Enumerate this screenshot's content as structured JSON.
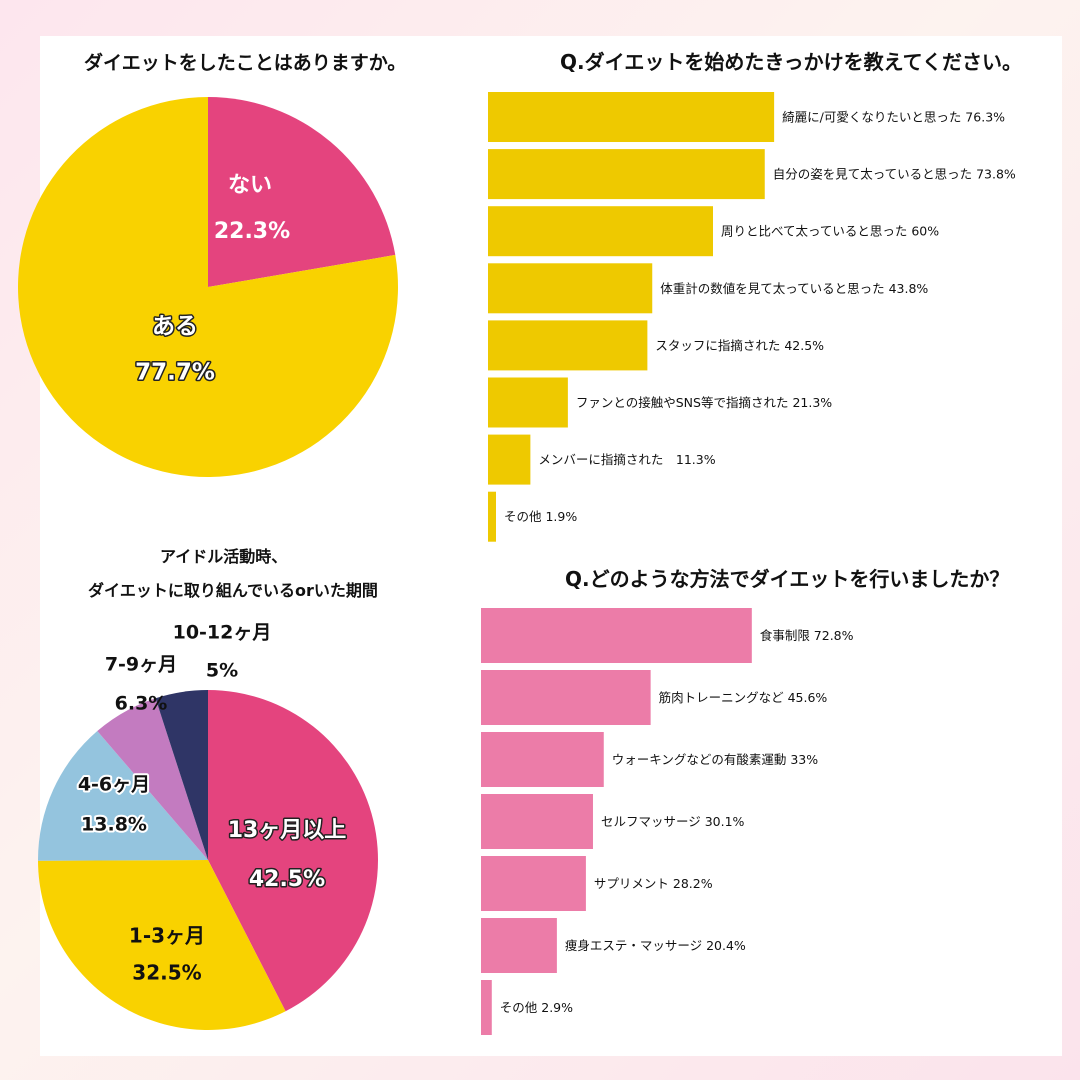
{
  "colors": {
    "yellow": "#f9d200",
    "bar_yellow": "#eec900",
    "pink_dark": "#e4447e",
    "pink_bar": "#ec7ca8",
    "light_blue": "#94c4de",
    "purple": "#c37bc0",
    "navy": "#2f3566"
  },
  "chart_data": [
    {
      "type": "pie",
      "title": "ダイエットをしたことはありますか。",
      "slices": [
        {
          "label": "ない",
          "value": 22.3,
          "value_label": "22.3%",
          "color": "#e4447e"
        },
        {
          "label": "ある",
          "value": 77.7,
          "value_label": "77.7%",
          "color": "#f9d200"
        }
      ]
    },
    {
      "type": "bar",
      "orientation": "horizontal",
      "title": "Q.ダイエットを始めたきっかけを教えてください。",
      "color": "#eec900",
      "categories": [
        "綺麗に/可愛くなりたいと思った 76.3%",
        "自分の姿を見て太っていると思った 73.8%",
        "周りと比べて太っていると思った 60%",
        "体重計の数値を見て太っていると思った 43.8%",
        "スタッフに指摘された 42.5%",
        "ファンとの接触やSNS等で指摘された 21.3%",
        "メンバーに指摘された　11.3%",
        "その他 1.9%"
      ],
      "values": [
        76.3,
        73.8,
        60,
        43.8,
        42.5,
        21.3,
        11.3,
        1.9
      ]
    },
    {
      "type": "pie",
      "title_lines": [
        "アイドル活動時、",
        "ダイエットに取り組んでいるorいた期間"
      ],
      "slices": [
        {
          "label": "13ヶ月以上",
          "value": 42.5,
          "value_label": "42.5%",
          "color": "#e4447e"
        },
        {
          "label": "1-3ヶ月",
          "value": 32.5,
          "value_label": "32.5%",
          "color": "#f9d200"
        },
        {
          "label": "4-6ヶ月",
          "value": 13.8,
          "value_label": "13.8%",
          "color": "#94c4de"
        },
        {
          "label": "7-9ヶ月",
          "value": 6.3,
          "value_label": "6.3%",
          "color": "#c37bc0"
        },
        {
          "label": "10-12ヶ月",
          "value": 5,
          "value_label": "5%",
          "color": "#2f3566"
        }
      ]
    },
    {
      "type": "bar",
      "orientation": "horizontal",
      "title": "Q.どのような方法でダイエットを行いましたか？",
      "color": "#ec7ca8",
      "categories": [
        "食事制限 72.8%",
        "筋肉トレーニングなど 45.6%",
        "ウォーキングなどの有酸素運動 33%",
        "セルフマッサージ 30.1%",
        "サプリメント 28.2%",
        "痩身エステ・マッサージ 20.4%",
        "その他 2.9%"
      ],
      "values": [
        72.8,
        45.6,
        33,
        30.1,
        28.2,
        20.4,
        2.9
      ]
    }
  ]
}
